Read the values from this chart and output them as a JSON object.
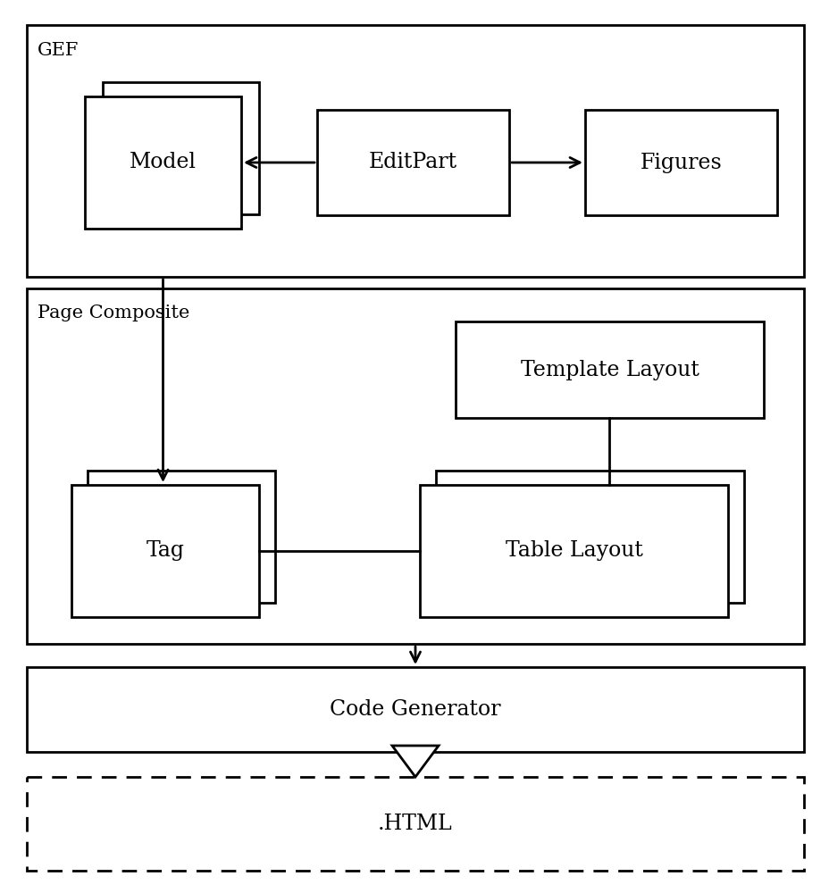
{
  "bg_color": "#ffffff",
  "text_color": "#000000",
  "box_edge_color": "#000000",
  "gef_label": "GEF",
  "page_composite_label": "Page Composite",
  "model_label": "Model",
  "editpart_label": "EditPart",
  "figures_label": "Figures",
  "template_layout_label": "Template Layout",
  "tag_label": "Tag",
  "table_layout_label": "Table Layout",
  "code_generator_label": "Code Generator",
  "html_label": ".HTML",
  "font_size_box": 17,
  "font_size_section": 15
}
